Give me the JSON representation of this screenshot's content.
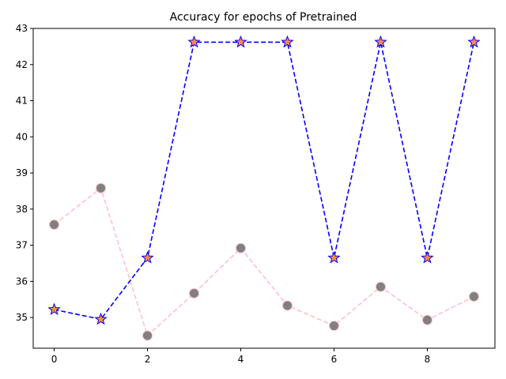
{
  "chart_data": {
    "type": "line",
    "title": "Accuracy for epochs of Pretrained",
    "xlabel": "",
    "ylabel": "",
    "x": [
      0,
      1,
      2,
      3,
      4,
      5,
      6,
      7,
      8,
      9
    ],
    "xlim": [
      -0.45,
      9.45
    ],
    "ylim": [
      34.15,
      43.0
    ],
    "xticks": [
      0,
      2,
      4,
      6,
      8
    ],
    "yticks": [
      35,
      36,
      37,
      38,
      39,
      40,
      41,
      42,
      43
    ],
    "grid": false,
    "legend": "none",
    "series": [
      {
        "values": [
          35.22,
          34.95,
          36.65,
          42.62,
          42.62,
          42.62,
          36.65,
          42.62,
          36.65,
          42.62
        ],
        "line_color": "#0000ff",
        "line_style": "dashed",
        "marker": "star",
        "marker_face": "#ff8c3a",
        "marker_edge": "#0000ff"
      },
      {
        "values": [
          37.57,
          38.58,
          34.5,
          35.67,
          36.92,
          35.33,
          34.77,
          35.85,
          34.93,
          35.58
        ],
        "line_color": "#ffc0cb",
        "line_style": "dashed",
        "marker": "circle",
        "marker_face": "#808080",
        "marker_edge": "#ffc0cb"
      }
    ]
  }
}
